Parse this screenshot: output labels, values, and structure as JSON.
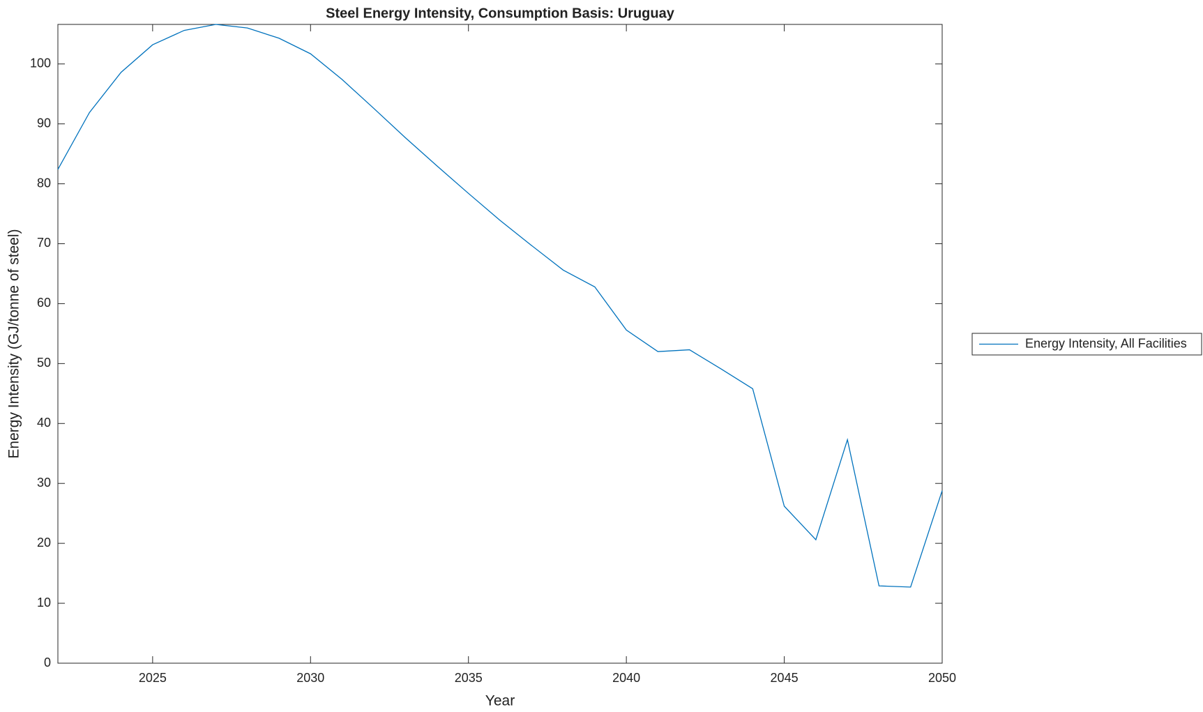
{
  "chart_data": {
    "type": "line",
    "title": "Steel Energy Intensity, Consumption Basis: Uruguay",
    "x_label": "Year",
    "y_label": "Energy Intensity (GJ/tonne of steel)",
    "x": [
      2022,
      2023,
      2024,
      2025,
      2026,
      2027,
      2028,
      2029,
      2030,
      2031,
      2032,
      2033,
      2034,
      2035,
      2036,
      2037,
      2038,
      2039,
      2040,
      2041,
      2042,
      2043,
      2044,
      2045,
      2046,
      2047,
      2048,
      2049,
      2050
    ],
    "series": [
      {
        "name": "Energy Intensity, All Facilities",
        "color": "#0072bd",
        "values": [
          82.4,
          91.9,
          98.6,
          103.2,
          105.6,
          106.6,
          106.0,
          104.3,
          101.7,
          97.4,
          92.6,
          87.7,
          83.0,
          78.4,
          73.9,
          69.7,
          65.6,
          62.8,
          55.6,
          52.0,
          52.3,
          49.1,
          45.8,
          26.2,
          20.6,
          37.3,
          12.9,
          12.7,
          28.8
        ]
      }
    ],
    "xlim": [
      2022,
      2050
    ],
    "xticks": [
      2025,
      2030,
      2035,
      2040,
      2045,
      2050
    ],
    "ylim": [
      0,
      106.6
    ],
    "yticks": [
      0,
      10,
      20,
      30,
      40,
      50,
      60,
      70,
      80,
      90,
      100
    ],
    "grid": false,
    "legend_position": "east-outside"
  }
}
